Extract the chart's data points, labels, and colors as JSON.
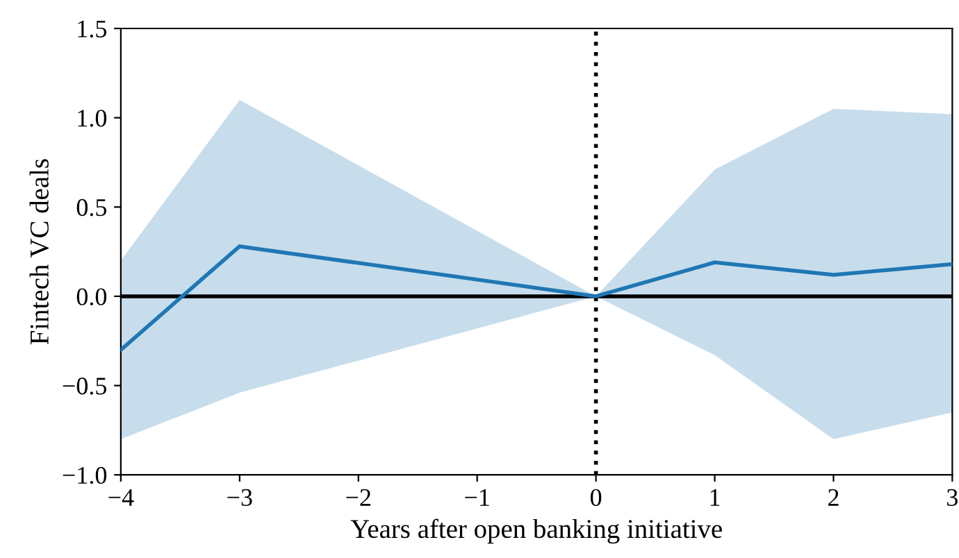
{
  "chart_data": {
    "type": "line",
    "xlabel": "Years after open banking initiative",
    "ylabel": "Fintech VC deals",
    "x": [
      -4,
      -3,
      0,
      1,
      2,
      3
    ],
    "series": [
      {
        "color": "#1f77b4",
        "values": [
          -0.3,
          0.28,
          0.0,
          0.19,
          0.12,
          0.18
        ],
        "lower": [
          -0.8,
          -0.54,
          0.0,
          -0.33,
          -0.8,
          -0.65
        ],
        "upper": [
          0.2,
          1.1,
          0.0,
          0.71,
          1.05,
          1.02
        ]
      }
    ],
    "xlim": [
      -4,
      3
    ],
    "xticks": [
      {
        "value": -4,
        "label": "−4"
      },
      {
        "value": -3,
        "label": "−3"
      },
      {
        "value": -2,
        "label": "−2"
      },
      {
        "value": -1,
        "label": "−1"
      },
      0,
      1,
      2,
      3
    ],
    "ylim": [
      -1.0,
      1.5
    ],
    "yticks": [
      {
        "value": -1.0,
        "label": "−1.0"
      },
      {
        "value": -0.5,
        "label": "−0.5"
      },
      {
        "value": 0.0,
        "label": "0.0"
      },
      {
        "value": 0.5,
        "label": "0.5"
      },
      {
        "value": 1.0,
        "label": "1.0"
      },
      {
        "value": 1.5,
        "label": "1.5"
      }
    ],
    "ref_lines": [
      {
        "axis": "y",
        "value": 0,
        "color": "#000000",
        "line_style": "solid"
      },
      {
        "axis": "x",
        "value": 0,
        "color": "#000000",
        "line_style": "dotted"
      }
    ],
    "grid": false,
    "legend": false
  }
}
